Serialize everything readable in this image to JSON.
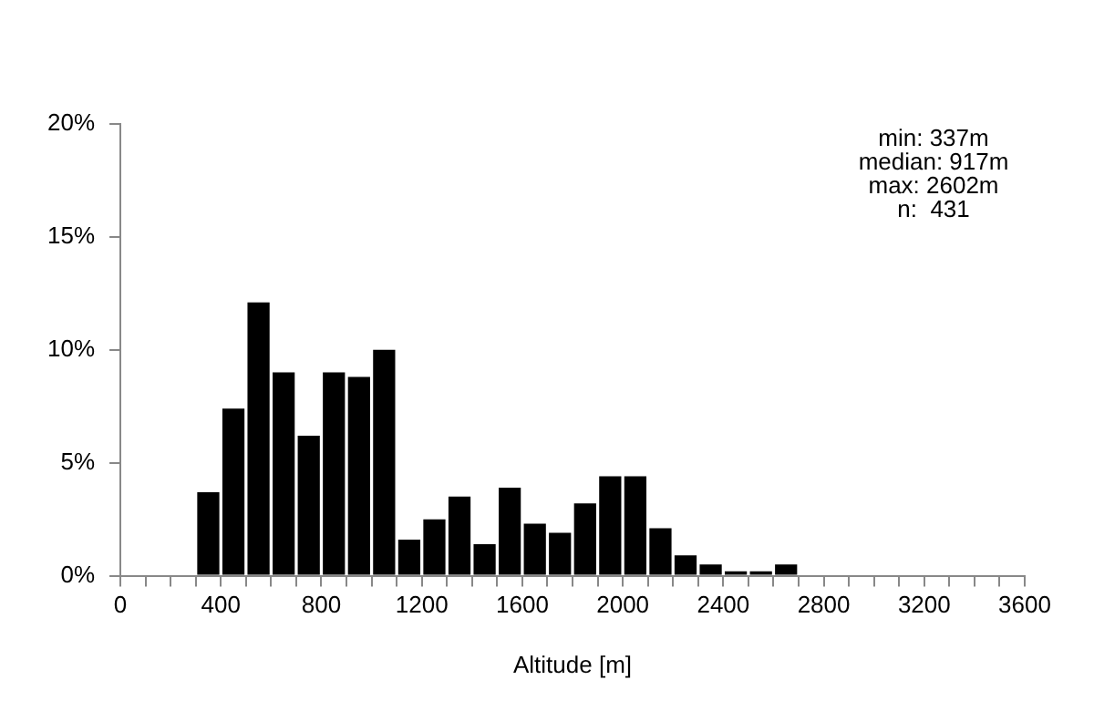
{
  "chart_data": {
    "type": "histogram",
    "xlabel": "Altitude [m]",
    "bins": [
      300,
      400,
      500,
      600,
      700,
      800,
      900,
      1000,
      1100,
      1200,
      1300,
      1400,
      1500,
      1600,
      1700,
      1800,
      1900,
      2000,
      2100,
      2200,
      2300,
      2400,
      2500,
      2600,
      2700
    ],
    "values": [
      3.7,
      7.4,
      12.1,
      9.0,
      6.2,
      9.0,
      8.8,
      10.0,
      1.6,
      2.5,
      3.5,
      1.4,
      3.9,
      2.3,
      1.9,
      3.2,
      4.4,
      4.4,
      2.1,
      0.9,
      0.5,
      0.2,
      0.2,
      0.5
    ],
    "color": "#000000",
    "xlim": [
      0,
      3600
    ],
    "xticks": [
      0,
      {
        "value": 100,
        "label": null
      },
      {
        "value": 200,
        "label": null
      },
      {
        "value": 300,
        "label": null
      },
      400,
      {
        "value": 500,
        "label": null
      },
      {
        "value": 600,
        "label": null
      },
      {
        "value": 700,
        "label": null
      },
      800,
      {
        "value": 900,
        "label": null
      },
      {
        "value": 1000,
        "label": null
      },
      {
        "value": 1100,
        "label": null
      },
      1200,
      {
        "value": 1300,
        "label": null
      },
      {
        "value": 1400,
        "label": null
      },
      {
        "value": 1500,
        "label": null
      },
      1600,
      {
        "value": 1700,
        "label": null
      },
      {
        "value": 1800,
        "label": null
      },
      {
        "value": 1900,
        "label": null
      },
      2000,
      {
        "value": 2100,
        "label": null
      },
      {
        "value": 2200,
        "label": null
      },
      {
        "value": 2300,
        "label": null
      },
      2400,
      {
        "value": 2500,
        "label": null
      },
      {
        "value": 2600,
        "label": null
      },
      {
        "value": 2700,
        "label": null
      },
      2800,
      {
        "value": 2900,
        "label": null
      },
      {
        "value": 3000,
        "label": null
      },
      {
        "value": 3100,
        "label": null
      },
      3200,
      {
        "value": 3300,
        "label": null
      },
      {
        "value": 3400,
        "label": null
      },
      {
        "value": 3500,
        "label": null
      },
      3600
    ],
    "ylim": [
      0,
      20
    ],
    "yticks": [
      {
        "value": 0,
        "label": "0%"
      },
      {
        "value": 5,
        "label": "5%"
      },
      {
        "value": 10,
        "label": "10%"
      },
      {
        "value": 15,
        "label": "15%"
      },
      {
        "value": 20,
        "label": "20%"
      }
    ],
    "annotations": [
      "min: 337m\nmedian: 917m\nmax: 2602m\nn:  431"
    ],
    "grid": false,
    "legend": false
  }
}
